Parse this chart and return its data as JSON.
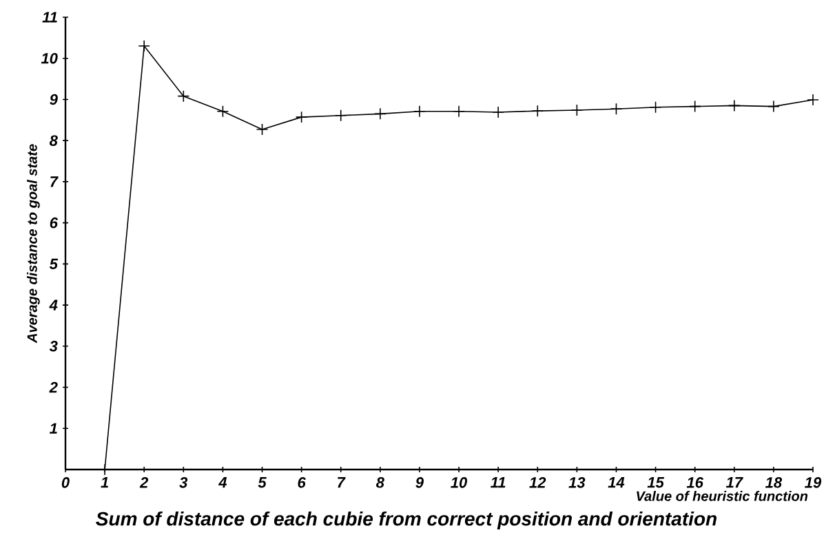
{
  "chart_data": {
    "type": "line",
    "title": "Sum of distance of each cubie from correct position and orientation",
    "xlabel": "Value of heuristic function",
    "ylabel": "Average distance to goal state",
    "x": [
      1,
      2,
      3,
      4,
      5,
      6,
      7,
      8,
      9,
      10,
      11,
      12,
      13,
      14,
      15,
      16,
      17,
      18,
      19
    ],
    "values": [
      0,
      10.3,
      9.08,
      8.71,
      8.27,
      8.57,
      8.61,
      8.65,
      8.71,
      8.71,
      8.69,
      8.72,
      8.74,
      8.77,
      8.81,
      8.83,
      8.85,
      8.83,
      8.99
    ],
    "color": "#000000",
    "marker": "cross",
    "line_style": "solid",
    "xlim": [
      0,
      19
    ],
    "ylim": [
      0,
      11
    ],
    "xticks": [
      0,
      1,
      2,
      3,
      4,
      5,
      6,
      7,
      8,
      9,
      10,
      11,
      12,
      13,
      14,
      15,
      16,
      17,
      18,
      19
    ],
    "yticks": [
      1,
      2,
      3,
      4,
      5,
      6,
      7,
      8,
      9,
      10,
      11
    ],
    "grid": false
  }
}
